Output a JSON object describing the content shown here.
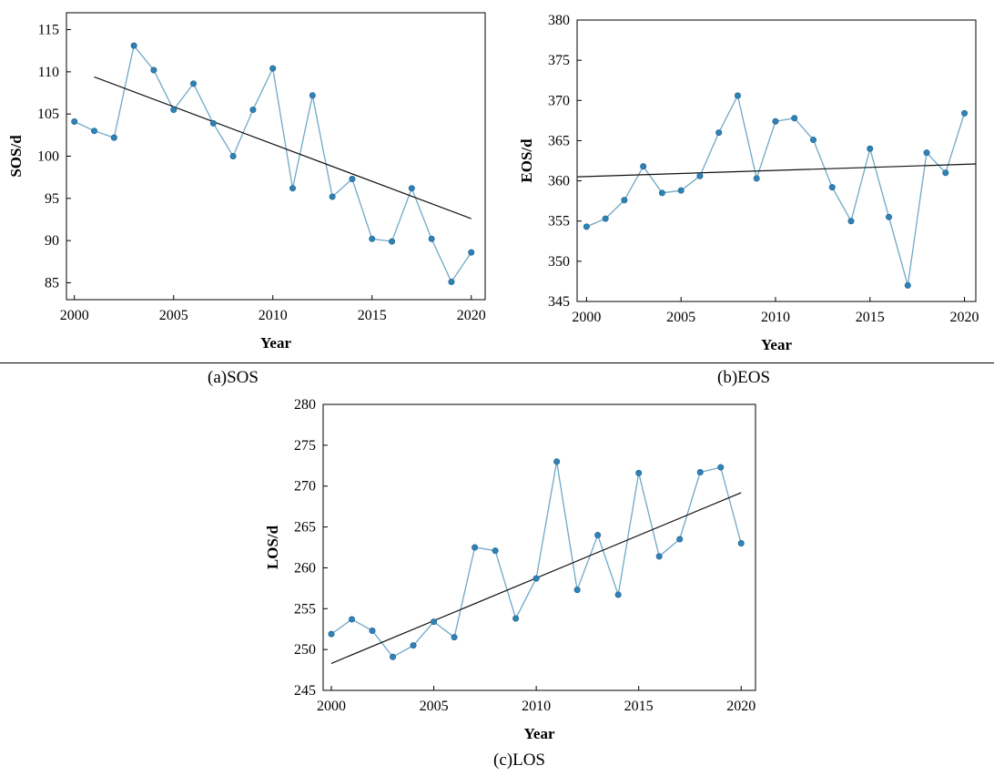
{
  "captions": {
    "a": "(a)SOS",
    "b": "(b)EOS",
    "c": "(c)LOS"
  },
  "colors": {
    "series_line": "#6fa8c8",
    "marker_fill": "#2f82b6",
    "trend_line": "#111111"
  },
  "chart_data": [
    {
      "type": "line",
      "id": "sos",
      "xlabel": "Year",
      "ylabel": "SOS/d",
      "xlim": [
        1999.6,
        2020.7
      ],
      "ylim": [
        83,
        117
      ],
      "xticks": [
        2000,
        2005,
        2010,
        2015,
        2020
      ],
      "yticks": [
        85,
        90,
        95,
        100,
        105,
        110,
        115
      ],
      "x": [
        2000,
        2001,
        2002,
        2003,
        2004,
        2005,
        2006,
        2007,
        2008,
        2009,
        2010,
        2011,
        2012,
        2013,
        2014,
        2015,
        2016,
        2017,
        2018,
        2019,
        2020
      ],
      "series": [
        {
          "values": [
            104.1,
            103.0,
            102.2,
            113.1,
            110.2,
            105.5,
            108.6,
            103.9,
            100.0,
            105.5,
            110.4,
            96.2,
            107.2,
            95.2,
            97.3,
            90.2,
            89.9,
            96.2,
            90.2,
            85.1,
            88.6
          ]
        }
      ],
      "trend": {
        "x": [
          2001,
          2020
        ],
        "y": [
          109.4,
          92.6
        ]
      },
      "grid": false
    },
    {
      "type": "line",
      "id": "eos",
      "xlabel": "Year",
      "ylabel": "EOS/d",
      "xlim": [
        1999.5,
        2020.6
      ],
      "ylim": [
        345,
        380
      ],
      "xticks": [
        2000,
        2005,
        2010,
        2015,
        2020
      ],
      "yticks": [
        345,
        350,
        355,
        360,
        365,
        370,
        375,
        380
      ],
      "x": [
        2000,
        2001,
        2002,
        2003,
        2004,
        2005,
        2006,
        2007,
        2008,
        2009,
        2010,
        2011,
        2012,
        2013,
        2014,
        2015,
        2016,
        2017,
        2018,
        2019,
        2020
      ],
      "series": [
        {
          "values": [
            354.3,
            355.3,
            357.6,
            361.8,
            358.5,
            358.8,
            360.6,
            366.0,
            370.6,
            360.3,
            367.4,
            367.8,
            365.1,
            359.2,
            355.0,
            364.0,
            355.5,
            347.0,
            363.5,
            361.0,
            368.4
          ]
        }
      ],
      "trend": {
        "x": [
          1999.5,
          2020.6
        ],
        "y": [
          360.5,
          362.1
        ]
      },
      "grid": false
    },
    {
      "type": "line",
      "id": "los",
      "xlabel": "Year",
      "ylabel": "LOS/d",
      "xlim": [
        1999.6,
        2020.7
      ],
      "ylim": [
        245,
        280
      ],
      "xticks": [
        2000,
        2005,
        2010,
        2015,
        2020
      ],
      "yticks": [
        245,
        250,
        255,
        260,
        265,
        270,
        275,
        280
      ],
      "x": [
        2000,
        2001,
        2002,
        2003,
        2004,
        2005,
        2006,
        2007,
        2008,
        2009,
        2010,
        2011,
        2012,
        2013,
        2014,
        2015,
        2016,
        2017,
        2018,
        2019,
        2020
      ],
      "series": [
        {
          "values": [
            251.9,
            253.7,
            252.3,
            249.1,
            250.5,
            253.4,
            251.5,
            262.5,
            262.1,
            253.8,
            258.7,
            273.0,
            257.3,
            264.0,
            256.7,
            271.6,
            261.4,
            263.5,
            271.7,
            272.3,
            263.0
          ]
        }
      ],
      "trend": {
        "x": [
          2000,
          2020
        ],
        "y": [
          248.3,
          269.2
        ]
      },
      "grid": false
    }
  ]
}
